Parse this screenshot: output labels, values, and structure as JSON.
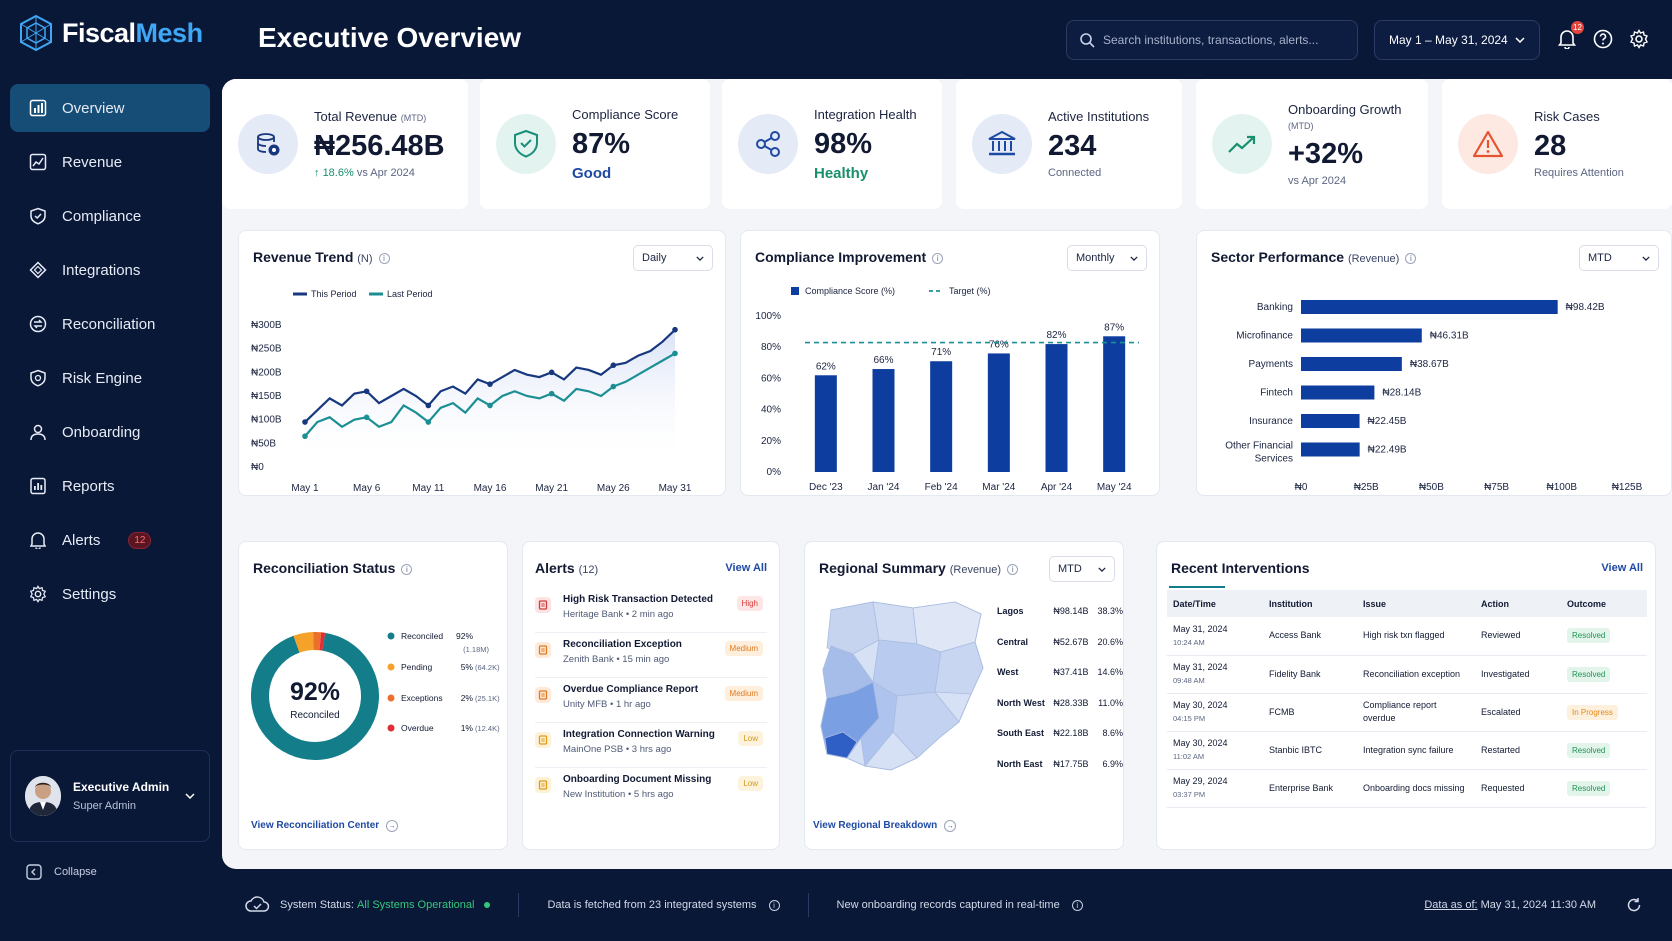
{
  "brand": {
    "name_part1": "Fiscal",
    "name_part2": "Mesh"
  },
  "header": {
    "title": "Executive Overview",
    "search_placeholder": "Search institutions, transactions, alerts...",
    "date_range": "May 1 – May 31, 2024",
    "notification_count": "12",
    "icons": {
      "search": "search-icon",
      "bell": "bell-icon",
      "help": "help-icon",
      "settings": "gear-icon"
    }
  },
  "sidebar": {
    "items": [
      {
        "label": "Overview",
        "icon": "overview-icon",
        "active": true
      },
      {
        "label": "Revenue",
        "icon": "revenue-icon"
      },
      {
        "label": "Compliance",
        "icon": "shield-icon"
      },
      {
        "label": "Integrations",
        "icon": "integrations-icon"
      },
      {
        "label": "Reconciliation",
        "icon": "reconciliation-icon"
      },
      {
        "label": "Risk Engine",
        "icon": "risk-shield-icon"
      },
      {
        "label": "Onboarding",
        "icon": "user-icon"
      },
      {
        "label": "Reports",
        "icon": "reports-icon"
      },
      {
        "label": "Alerts",
        "icon": "bell-icon",
        "badge": "12"
      },
      {
        "label": "Settings",
        "icon": "gear-icon"
      }
    ],
    "user": {
      "name": "Executive Admin",
      "role": "Super Admin"
    },
    "collapse_label": "Collapse"
  },
  "kpis": {
    "revenue": {
      "label": "Total Revenue",
      "label_small": "(MTD)",
      "value": "₦256.48B",
      "delta": "18.6%",
      "delta_suffix": "vs Apr 2024"
    },
    "compliance": {
      "label": "Compliance Score",
      "value": "87%",
      "status": "Good"
    },
    "integration": {
      "label": "Integration Health",
      "value": "98%",
      "status": "Healthy"
    },
    "institutions": {
      "label": "Active Institutions",
      "value": "234",
      "sub": "Connected"
    },
    "onboarding": {
      "label": "Onboarding Growth",
      "label_small": "(MTD)",
      "value": "+32%",
      "sub": "vs Apr 2024"
    },
    "risk": {
      "label": "Risk Cases",
      "value": "28",
      "sub": "Requires Attention"
    }
  },
  "revenue_trend": {
    "title": "Revenue Trend",
    "title_small": "(N)",
    "select": "Daily",
    "legend": [
      "This Period",
      "Last Period"
    ]
  },
  "compliance_improvement": {
    "title": "Compliance Improvement",
    "select": "Monthly",
    "legend": [
      "Compliance Score (%)",
      "Target (%)"
    ]
  },
  "sector_performance": {
    "title": "Sector Performance",
    "title_small": "(Revenue)",
    "select": "MTD"
  },
  "chart_data": [
    {
      "type": "line",
      "title": "Revenue Trend (N)",
      "x": [
        "May 1",
        "May 2",
        "May 3",
        "May 4",
        "May 5",
        "May 6",
        "May 7",
        "May 8",
        "May 9",
        "May 10",
        "May 11",
        "May 12",
        "May 13",
        "May 14",
        "May 15",
        "May 16",
        "May 17",
        "May 18",
        "May 19",
        "May 20",
        "May 21",
        "May 22",
        "May 23",
        "May 24",
        "May 25",
        "May 26",
        "May 27",
        "May 28",
        "May 29",
        "May 30",
        "May 31"
      ],
      "x_tick_labels": [
        "May 1",
        "May 6",
        "May 11",
        "May 16",
        "May 21",
        "May 26",
        "May 31"
      ],
      "y_tick_labels": [
        "₦0",
        "₦50B",
        "₦100B",
        "₦150B",
        "₦200B",
        "₦250B",
        "₦300B"
      ],
      "ylim": [
        0,
        300
      ],
      "series": [
        {
          "name": "This Period",
          "color": "#17387f",
          "values": [
            95,
            120,
            145,
            130,
            155,
            160,
            135,
            150,
            165,
            150,
            130,
            160,
            170,
            155,
            185,
            175,
            190,
            205,
            195,
            190,
            200,
            185,
            210,
            205,
            195,
            215,
            220,
            235,
            245,
            265,
            290
          ]
        },
        {
          "name": "Last Period",
          "color": "#1c8f94",
          "values": [
            65,
            95,
            105,
            85,
            100,
            105,
            85,
            95,
            130,
            115,
            95,
            125,
            135,
            115,
            145,
            130,
            150,
            160,
            150,
            145,
            155,
            140,
            165,
            160,
            150,
            170,
            180,
            195,
            210,
            225,
            240
          ]
        }
      ]
    },
    {
      "type": "bar",
      "title": "Compliance Improvement",
      "categories": [
        "Dec '23",
        "Jan '24",
        "Feb '24",
        "Mar '24",
        "Apr '24",
        "May '24"
      ],
      "series": [
        {
          "name": "Compliance Score (%)",
          "color": "#0d3d9e",
          "values": [
            62,
            66,
            71,
            76,
            82,
            87
          ]
        }
      ],
      "target": {
        "name": "Target (%)",
        "value": 83
      },
      "y_tick_labels": [
        "0%",
        "20%",
        "40%",
        "60%",
        "80%",
        "100%"
      ],
      "ylim": [
        0,
        100
      ]
    },
    {
      "type": "bar",
      "orientation": "horizontal",
      "title": "Sector Performance (Revenue)",
      "categories": [
        "Banking",
        "Microfinance",
        "Payments",
        "Fintech",
        "Insurance",
        "Other Financial Services"
      ],
      "values": [
        98.42,
        46.31,
        38.67,
        28.14,
        22.45,
        22.49
      ],
      "value_labels": [
        "₦98.42B",
        "₦46.31B",
        "₦38.67B",
        "₦28.14B",
        "₦22.45B",
        "₦22.49B"
      ],
      "x_tick_labels": [
        "₦0",
        "₦25B",
        "₦50B",
        "₦75B",
        "₦100B",
        "₦125B"
      ],
      "xlim": [
        0,
        125
      ]
    },
    {
      "type": "pie",
      "title": "Reconciliation Status",
      "center_value": "92%",
      "center_label": "Reconciled",
      "slices": [
        {
          "name": "Reconciled",
          "pct": "92%",
          "count": "(1.18M)",
          "value": 92,
          "color": "#137e8a"
        },
        {
          "name": "Pending",
          "pct": "5%",
          "count": "(64.2K)",
          "value": 5,
          "color": "#f5a12a"
        },
        {
          "name": "Exceptions",
          "pct": "2%",
          "count": "(25.1K)",
          "value": 2,
          "color": "#ec6f2c"
        },
        {
          "name": "Overdue",
          "pct": "1%",
          "count": "(12.4K)",
          "value": 1,
          "color": "#e02d36"
        }
      ]
    }
  ],
  "reconciliation": {
    "title": "Reconciliation Status",
    "link": "View Reconciliation Center"
  },
  "alerts": {
    "title": "Alerts",
    "count": "(12)",
    "view_all": "View All",
    "items": [
      {
        "title": "High Risk Transaction Detected",
        "sub": "Heritage Bank • 2 min ago",
        "severity": "High",
        "icon": "risk-transaction-icon"
      },
      {
        "title": "Reconciliation Exception",
        "sub": "Zenith Bank • 15 min ago",
        "severity": "Medium",
        "icon": "document-icon"
      },
      {
        "title": "Overdue Compliance Report",
        "sub": "Unity MFB • 1 hr ago",
        "severity": "Medium",
        "icon": "document-icon"
      },
      {
        "title": "Integration Connection Warning",
        "sub": "MainOne PSB • 3 hrs ago",
        "severity": "Low",
        "icon": "warning-icon"
      },
      {
        "title": "Onboarding Document Missing",
        "sub": "New Institution • 5 hrs ago",
        "severity": "Low",
        "icon": "document-icon"
      }
    ]
  },
  "regional": {
    "title": "Regional Summary",
    "title_small": "(Revenue)",
    "select": "MTD",
    "link": "View Regional Breakdown",
    "rows": [
      {
        "name": "Lagos",
        "value": "₦98.14B",
        "pct": "38.3%"
      },
      {
        "name": "Central",
        "value": "₦52.67B",
        "pct": "20.6%"
      },
      {
        "name": "West",
        "value": "₦37.41B",
        "pct": "14.6%"
      },
      {
        "name": "North West",
        "value": "₦28.33B",
        "pct": "11.0%"
      },
      {
        "name": "South East",
        "value": "₦22.18B",
        "pct": "8.6%"
      },
      {
        "name": "North East",
        "value": "₦17.75B",
        "pct": "6.9%"
      }
    ]
  },
  "interventions": {
    "title": "Recent Interventions",
    "view_all": "View All",
    "headers": [
      "Date/Time",
      "Institution",
      "Issue",
      "Action",
      "Outcome"
    ],
    "rows": [
      {
        "date": "May 31, 2024",
        "time": "10:24 AM",
        "institution": "Access Bank",
        "issue": "High risk txn flagged",
        "action": "Reviewed",
        "outcome": "Resolved"
      },
      {
        "date": "May 31, 2024",
        "time": "09:48 AM",
        "institution": "Fidelity Bank",
        "issue": "Reconciliation exception",
        "action": "Investigated",
        "outcome": "Resolved"
      },
      {
        "date": "May 30, 2024",
        "time": "04:15 PM",
        "institution": "FCMB",
        "issue": "Compliance report overdue",
        "action": "Escalated",
        "outcome": "In Progress"
      },
      {
        "date": "May 30, 2024",
        "time": "11:02 AM",
        "institution": "Stanbic IBTC",
        "issue": "Integration sync failure",
        "action": "Restarted",
        "outcome": "Resolved"
      },
      {
        "date": "May 29, 2024",
        "time": "03:37 PM",
        "institution": "Enterprise Bank",
        "issue": "Onboarding docs missing",
        "action": "Requested",
        "outcome": "Resolved"
      }
    ]
  },
  "status_bar": {
    "label": "System Status:",
    "status": "All Systems Operational",
    "fetched": "Data is fetched from 23 integrated systems",
    "onboarding": "New onboarding records captured in real-time",
    "data_as_of_label": "Data as of:",
    "data_as_of": "May 31, 2024 11:30 AM"
  }
}
